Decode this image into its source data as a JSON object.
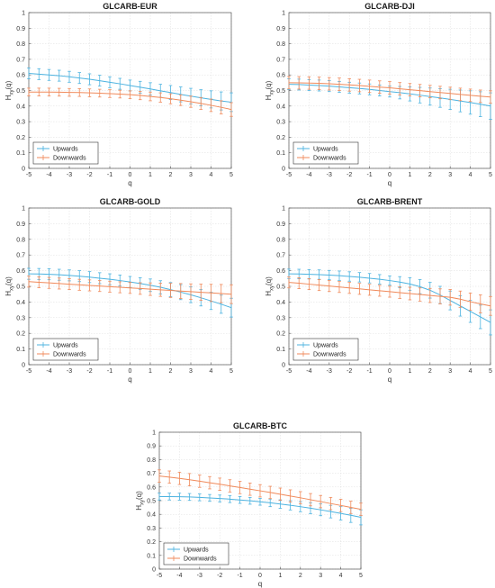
{
  "colors": {
    "upwards": "#4db3e0",
    "downwards": "#f08a5b",
    "grid": "#dddddd",
    "axis": "#555555"
  },
  "chart_data": [
    {
      "type": "line",
      "title": "GLCARB-EUR",
      "xlabel": "q",
      "ylabel": "H_xy(q)",
      "xlim": [
        -5,
        5
      ],
      "ylim": [
        0,
        1
      ],
      "xticks": [
        -5,
        -4,
        -3,
        -2,
        -1,
        0,
        1,
        2,
        3,
        4,
        5
      ],
      "yticks": [
        0,
        0.1,
        0.2,
        0.3,
        0.4,
        0.5,
        0.6,
        0.7,
        0.8,
        0.9,
        1
      ],
      "grid": true,
      "legend": "bottom-left",
      "x": [
        -5,
        -4.5,
        -4,
        -3.5,
        -3,
        -2.5,
        -2,
        -1.5,
        -1,
        -0.5,
        0,
        0.5,
        1,
        1.5,
        2,
        2.5,
        3,
        3.5,
        4,
        4.5,
        5
      ],
      "series": [
        {
          "name": "Upwards",
          "color_key": "upwards",
          "y": [
            0.61,
            0.605,
            0.6,
            0.595,
            0.588,
            0.58,
            0.572,
            0.563,
            0.553,
            0.543,
            0.532,
            0.521,
            0.51,
            0.498,
            0.487,
            0.475,
            0.464,
            0.453,
            0.443,
            0.433,
            0.425
          ],
          "err": [
            0.035,
            0.035,
            0.035,
            0.035,
            0.035,
            0.035,
            0.035,
            0.035,
            0.035,
            0.035,
            0.035,
            0.038,
            0.04,
            0.042,
            0.045,
            0.048,
            0.05,
            0.052,
            0.055,
            0.058,
            0.06
          ]
        },
        {
          "name": "Downwards",
          "color_key": "downwards",
          "y": [
            0.49,
            0.49,
            0.49,
            0.489,
            0.488,
            0.487,
            0.485,
            0.483,
            0.48,
            0.477,
            0.473,
            0.468,
            0.462,
            0.455,
            0.447,
            0.438,
            0.428,
            0.417,
            0.405,
            0.392,
            0.378
          ],
          "err": [
            0.025,
            0.025,
            0.025,
            0.025,
            0.025,
            0.025,
            0.025,
            0.025,
            0.025,
            0.025,
            0.025,
            0.027,
            0.028,
            0.03,
            0.032,
            0.034,
            0.036,
            0.038,
            0.04,
            0.042,
            0.044
          ]
        }
      ]
    },
    {
      "type": "line",
      "title": "GLCARB-DJI",
      "xlabel": "q",
      "ylabel": "H_xy(q)",
      "xlim": [
        -5,
        5
      ],
      "ylim": [
        0,
        1
      ],
      "xticks": [
        -5,
        -4,
        -3,
        -2,
        -1,
        0,
        1,
        2,
        3,
        4,
        5
      ],
      "yticks": [
        0,
        0.1,
        0.2,
        0.3,
        0.4,
        0.5,
        0.6,
        0.7,
        0.8,
        0.9,
        1
      ],
      "grid": true,
      "legend": "bottom-left",
      "x": [
        -5,
        -4.5,
        -4,
        -3.5,
        -3,
        -2.5,
        -2,
        -1.5,
        -1,
        -0.5,
        0,
        0.5,
        1,
        1.5,
        2,
        2.5,
        3,
        3.5,
        4,
        4.5,
        5
      ],
      "series": [
        {
          "name": "Upwards",
          "color_key": "upwards",
          "y": [
            0.54,
            0.538,
            0.535,
            0.532,
            0.528,
            0.523,
            0.518,
            0.513,
            0.507,
            0.5,
            0.493,
            0.486,
            0.478,
            0.47,
            0.461,
            0.452,
            0.443,
            0.433,
            0.423,
            0.412,
            0.4
          ],
          "err": [
            0.035,
            0.035,
            0.035,
            0.035,
            0.035,
            0.035,
            0.035,
            0.035,
            0.035,
            0.035,
            0.035,
            0.04,
            0.045,
            0.05,
            0.055,
            0.06,
            0.065,
            0.07,
            0.075,
            0.08,
            0.085
          ]
        },
        {
          "name": "Downwards",
          "color_key": "downwards",
          "y": [
            0.55,
            0.549,
            0.548,
            0.546,
            0.543,
            0.54,
            0.536,
            0.532,
            0.527,
            0.522,
            0.517,
            0.511,
            0.505,
            0.499,
            0.493,
            0.487,
            0.481,
            0.475,
            0.469,
            0.463,
            0.458
          ],
          "err": [
            0.04,
            0.04,
            0.04,
            0.04,
            0.04,
            0.04,
            0.04,
            0.04,
            0.04,
            0.04,
            0.04,
            0.04,
            0.04,
            0.04,
            0.04,
            0.04,
            0.04,
            0.04,
            0.04,
            0.04,
            0.04
          ]
        }
      ]
    },
    {
      "type": "line",
      "title": "GLCARB-GOLD",
      "xlabel": "q",
      "ylabel": "H_xy(q)",
      "xlim": [
        -5,
        5
      ],
      "ylim": [
        0,
        1
      ],
      "xticks": [
        -5,
        -4,
        -3,
        -2,
        -1,
        0,
        1,
        2,
        3,
        4,
        5
      ],
      "yticks": [
        0,
        0.1,
        0.2,
        0.3,
        0.4,
        0.5,
        0.6,
        0.7,
        0.8,
        0.9,
        1
      ],
      "grid": true,
      "legend": "bottom-left",
      "x": [
        -5,
        -4.5,
        -4,
        -3.5,
        -3,
        -2.5,
        -2,
        -1.5,
        -1,
        -0.5,
        0,
        0.5,
        1,
        1.5,
        2,
        2.5,
        3,
        3.5,
        4,
        4.5,
        5
      ],
      "series": [
        {
          "name": "Upwards",
          "color_key": "upwards",
          "y": [
            0.58,
            0.579,
            0.577,
            0.574,
            0.57,
            0.565,
            0.559,
            0.552,
            0.545,
            0.537,
            0.528,
            0.518,
            0.507,
            0.494,
            0.479,
            0.463,
            0.446,
            0.427,
            0.407,
            0.386,
            0.364
          ],
          "err": [
            0.035,
            0.035,
            0.035,
            0.035,
            0.035,
            0.035,
            0.035,
            0.035,
            0.035,
            0.035,
            0.035,
            0.037,
            0.04,
            0.042,
            0.045,
            0.048,
            0.05,
            0.052,
            0.055,
            0.058,
            0.06
          ]
        },
        {
          "name": "Downwards",
          "color_key": "downwards",
          "y": [
            0.53,
            0.526,
            0.522,
            0.518,
            0.514,
            0.51,
            0.506,
            0.502,
            0.498,
            0.494,
            0.49,
            0.486,
            0.482,
            0.478,
            0.474,
            0.47,
            0.466,
            0.462,
            0.458,
            0.454,
            0.45
          ],
          "err": [
            0.035,
            0.035,
            0.035,
            0.035,
            0.035,
            0.035,
            0.035,
            0.035,
            0.035,
            0.035,
            0.035,
            0.037,
            0.04,
            0.042,
            0.045,
            0.048,
            0.05,
            0.052,
            0.055,
            0.058,
            0.06
          ]
        }
      ]
    },
    {
      "type": "line",
      "title": "GLCARB-BRENT",
      "xlabel": "q",
      "ylabel": "H_xy(q)",
      "xlim": [
        -5,
        5
      ],
      "ylim": [
        0,
        1
      ],
      "xticks": [
        -5,
        -4,
        -3,
        -2,
        -1,
        0,
        1,
        2,
        3,
        4,
        5
      ],
      "yticks": [
        0,
        0.1,
        0.2,
        0.3,
        0.4,
        0.5,
        0.6,
        0.7,
        0.8,
        0.9,
        1
      ],
      "grid": true,
      "legend": "bottom-left",
      "x": [
        -5,
        -4.5,
        -4,
        -3.5,
        -3,
        -2.5,
        -2,
        -1.5,
        -1,
        -0.5,
        0,
        0.5,
        1,
        1.5,
        2,
        2.5,
        3,
        3.5,
        4,
        4.5,
        5
      ],
      "series": [
        {
          "name": "Upwards",
          "color_key": "upwards",
          "y": [
            0.58,
            0.579,
            0.577,
            0.575,
            0.572,
            0.568,
            0.563,
            0.558,
            0.552,
            0.545,
            0.537,
            0.527,
            0.515,
            0.498,
            0.475,
            0.445,
            0.41,
            0.375,
            0.34,
            0.305,
            0.27
          ],
          "err": [
            0.03,
            0.03,
            0.03,
            0.03,
            0.03,
            0.03,
            0.03,
            0.03,
            0.03,
            0.03,
            0.03,
            0.035,
            0.04,
            0.045,
            0.05,
            0.055,
            0.06,
            0.065,
            0.07,
            0.075,
            0.08
          ]
        },
        {
          "name": "Downwards",
          "color_key": "downwards",
          "y": [
            0.525,
            0.52,
            0.514,
            0.508,
            0.502,
            0.496,
            0.49,
            0.484,
            0.478,
            0.472,
            0.466,
            0.46,
            0.454,
            0.448,
            0.442,
            0.436,
            0.43,
            0.418,
            0.402,
            0.388,
            0.375
          ],
          "err": [
            0.035,
            0.035,
            0.035,
            0.035,
            0.035,
            0.035,
            0.035,
            0.035,
            0.035,
            0.035,
            0.035,
            0.037,
            0.04,
            0.042,
            0.045,
            0.048,
            0.05,
            0.052,
            0.055,
            0.058,
            0.06
          ]
        }
      ]
    },
    {
      "type": "line",
      "title": "GLCARB-BTC",
      "xlabel": "q",
      "ylabel": "H_xy(q)",
      "xlim": [
        -5,
        5
      ],
      "ylim": [
        0,
        1
      ],
      "xticks": [
        -5,
        -4,
        -3,
        -2,
        -1,
        0,
        1,
        2,
        3,
        4,
        5
      ],
      "yticks": [
        0,
        0.1,
        0.2,
        0.3,
        0.4,
        0.5,
        0.6,
        0.7,
        0.8,
        0.9,
        1
      ],
      "grid": true,
      "legend": "bottom-left",
      "x": [
        -5,
        -4.5,
        -4,
        -3.5,
        -3,
        -2.5,
        -2,
        -1.5,
        -1,
        -0.5,
        0,
        0.5,
        1,
        1.5,
        2,
        2.5,
        3,
        3.5,
        4,
        4.5,
        5
      ],
      "series": [
        {
          "name": "Upwards",
          "color_key": "upwards",
          "y": [
            0.53,
            0.53,
            0.529,
            0.527,
            0.524,
            0.52,
            0.516,
            0.511,
            0.505,
            0.499,
            0.492,
            0.484,
            0.475,
            0.466,
            0.456,
            0.445,
            0.433,
            0.42,
            0.407,
            0.393,
            0.378
          ],
          "err": [
            0.025,
            0.025,
            0.025,
            0.025,
            0.025,
            0.025,
            0.025,
            0.025,
            0.025,
            0.025,
            0.025,
            0.028,
            0.031,
            0.034,
            0.037,
            0.04,
            0.043,
            0.046,
            0.049,
            0.052,
            0.055
          ]
        },
        {
          "name": "Downwards",
          "color_key": "downwards",
          "y": [
            0.68,
            0.672,
            0.663,
            0.653,
            0.642,
            0.631,
            0.62,
            0.608,
            0.596,
            0.584,
            0.572,
            0.56,
            0.547,
            0.534,
            0.521,
            0.507,
            0.493,
            0.479,
            0.465,
            0.451,
            0.437
          ],
          "err": [
            0.045,
            0.045,
            0.045,
            0.045,
            0.045,
            0.045,
            0.045,
            0.045,
            0.045,
            0.045,
            0.045,
            0.045,
            0.045,
            0.045,
            0.045,
            0.045,
            0.045,
            0.045,
            0.045,
            0.045,
            0.045
          ]
        }
      ]
    }
  ]
}
